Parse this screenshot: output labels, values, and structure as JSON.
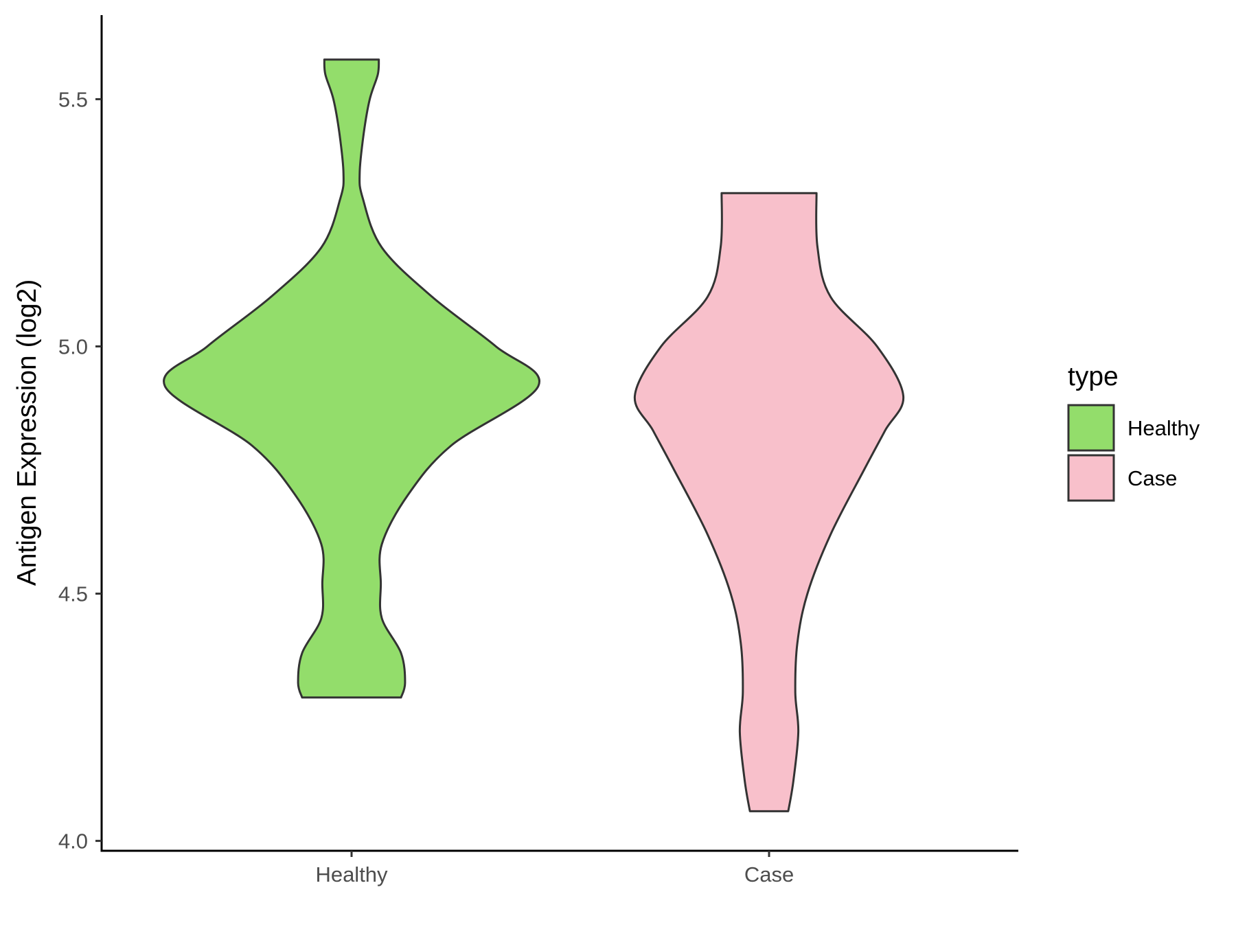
{
  "chart_data": {
    "type": "violin",
    "title": "",
    "xlabel": "",
    "ylabel": "Antigen Expression (log2)",
    "ylim": [
      3.98,
      5.67
    ],
    "y_ticks": [
      "4.0",
      "4.5",
      "5.0",
      "5.5"
    ],
    "grid": false,
    "categories": [
      "Healthy",
      "Case"
    ],
    "legend": {
      "title": "type",
      "position": "right",
      "entries": [
        "Healthy",
        "Case"
      ]
    },
    "series": [
      {
        "name": "Healthy",
        "color": "#93dd6b",
        "range": [
          4.29,
          5.58
        ],
        "density": [
          [
            4.29,
            0.49
          ],
          [
            4.32,
            0.53
          ],
          [
            4.38,
            0.49
          ],
          [
            4.45,
            0.3
          ],
          [
            4.52,
            0.29
          ],
          [
            4.6,
            0.3
          ],
          [
            4.7,
            0.56
          ],
          [
            4.8,
            0.99
          ],
          [
            4.92,
            1.85
          ],
          [
            5.0,
            1.43
          ],
          [
            5.1,
            0.8
          ],
          [
            5.2,
            0.3
          ],
          [
            5.3,
            0.11
          ],
          [
            5.35,
            0.08
          ],
          [
            5.43,
            0.12
          ],
          [
            5.5,
            0.18
          ],
          [
            5.55,
            0.26
          ],
          [
            5.58,
            0.27
          ]
        ]
      },
      {
        "name": "Case",
        "color": "#f8c0cb",
        "range": [
          4.06,
          5.31
        ],
        "density": [
          [
            4.06,
            0.19
          ],
          [
            4.12,
            0.24
          ],
          [
            4.22,
            0.29
          ],
          [
            4.3,
            0.26
          ],
          [
            4.4,
            0.28
          ],
          [
            4.5,
            0.38
          ],
          [
            4.62,
            0.61
          ],
          [
            4.75,
            0.94
          ],
          [
            4.83,
            1.15
          ],
          [
            4.9,
            1.33
          ],
          [
            5.0,
            1.07
          ],
          [
            5.1,
            0.61
          ],
          [
            5.2,
            0.48
          ],
          [
            5.31,
            0.47
          ]
        ]
      }
    ]
  }
}
